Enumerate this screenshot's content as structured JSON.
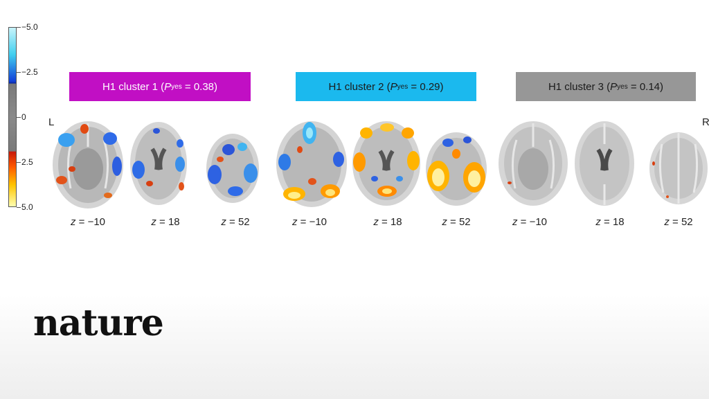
{
  "colorbar": {
    "tick_labels": [
      "−5.0",
      "−2.5",
      "0",
      "2.5",
      "5.0"
    ],
    "colors": {
      "neg_light": "#7fe0f5",
      "neg_dark": "#1240d8",
      "zero": "#808080",
      "pos_dark": "#d8200a",
      "pos_light": "#ffff9a"
    }
  },
  "clusters": [
    {
      "prefix": "H1 cluster 1 (",
      "p_symbol": "P",
      "p_sub": "yes",
      "p_value": " = 0.38)",
      "color": "#c10fc4"
    },
    {
      "prefix": "H1 cluster 2 (",
      "p_symbol": "P",
      "p_sub": "yes",
      "p_value": " = 0.29)",
      "color": "#1bb9ee"
    },
    {
      "prefix": "H1 cluster 3 (",
      "p_symbol": "P",
      "p_sub": "yes",
      "p_value": " = 0.14)",
      "color": "#979797"
    }
  ],
  "side_labels": {
    "left": "L",
    "right": "R"
  },
  "slices": [
    {
      "z_symbol": "z",
      "z_value": " = −10"
    },
    {
      "z_symbol": "z",
      "z_value": " = 18"
    },
    {
      "z_symbol": "z",
      "z_value": " = 52"
    },
    {
      "z_symbol": "z",
      "z_value": " = −10"
    },
    {
      "z_symbol": "z",
      "z_value": " = 18"
    },
    {
      "z_symbol": "z",
      "z_value": " = 52"
    },
    {
      "z_symbol": "z",
      "z_value": " = −10"
    },
    {
      "z_symbol": "z",
      "z_value": " = 18"
    },
    {
      "z_symbol": "z",
      "z_value": " = 52"
    }
  ],
  "brand": {
    "logo": "nature"
  }
}
